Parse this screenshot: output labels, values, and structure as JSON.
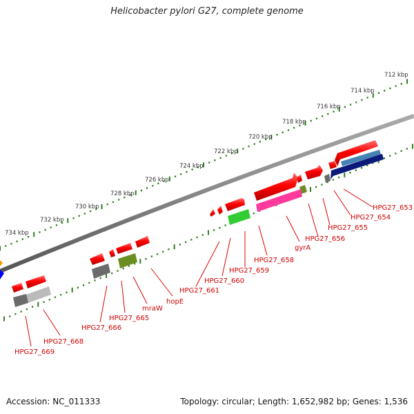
{
  "title": "Helicobacter pylori G27, complete genome",
  "footer": {
    "accession": "Accession: NC_011333",
    "summary": "Topology: circular; Length: 1,652,982 bp; Genes: 1,536"
  },
  "chart_data": {
    "type": "genome-map",
    "ticks": [
      "712 kbp",
      "714 kbp",
      "716 kbp",
      "718 kbp",
      "720 kbp",
      "722 kbp",
      "724 kbp",
      "726 kbp",
      "728 kbp",
      "730 kbp",
      "732 kbp",
      "734 kbp"
    ],
    "genes": [
      "HPG27_653",
      "HPG27_654",
      "HPG27_655",
      "HPG27_656",
      "gyrA",
      "HPG27_658",
      "HPG27_659",
      "HPG27_660",
      "HPG27_661",
      "hopE",
      "mraW",
      "HPG27_665",
      "HPG27_666",
      "HPG27_668",
      "HPG27_669"
    ],
    "colors": {
      "backbone": "#777777",
      "tick": "#2e7d1e",
      "gene": "#ff0000",
      "label": "#cc0000"
    }
  }
}
